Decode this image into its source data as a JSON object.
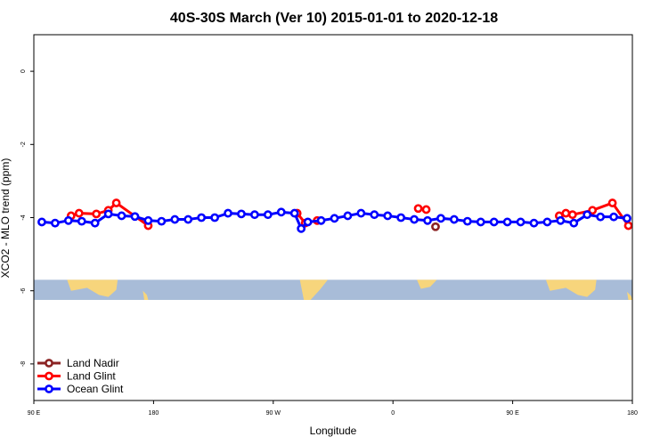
{
  "chart_data": {
    "type": "line",
    "title": "40S-30S March (Ver 10)   2015-01-01 to 2020-12-18",
    "xlabel": "Longitude",
    "ylabel": "XCO2 - MLO trend (ppm)",
    "x_ticks": [
      {
        "value": 90,
        "label": "90 E"
      },
      {
        "value": 180,
        "label": "180"
      },
      {
        "value": 270,
        "label": "90 W"
      },
      {
        "value": 360,
        "label": "0"
      },
      {
        "value": 450,
        "label": "90 E"
      },
      {
        "value": 540,
        "label": "180"
      }
    ],
    "y_ticks": [
      {
        "value": 0,
        "label": "0"
      },
      {
        "value": -2,
        "label": "-2"
      },
      {
        "value": -4,
        "label": "-4"
      },
      {
        "value": -6,
        "label": "-6"
      },
      {
        "value": -8,
        "label": "-8"
      }
    ],
    "xlim": [
      90,
      540
    ],
    "ylim": [
      -9.0,
      1.0
    ],
    "legend_position": "bottom-left",
    "map_strip_y_range": [
      -5.7,
      -6.25
    ],
    "map_colors": {
      "ocean": "#a8bcd8",
      "land": "#f7d57c"
    },
    "series": [
      {
        "name": "Land Nadir",
        "color": "#8b2323",
        "x": [
          392
        ],
        "y": [
          -4.25
        ]
      },
      {
        "name": "Land Glint",
        "color": "#ff0000",
        "x": [
          118,
          124,
          137,
          146,
          152,
          176,
          288,
          294,
          303,
          379,
          385,
          485,
          490,
          495,
          510,
          525,
          537
        ],
        "y": [
          -3.95,
          -3.88,
          -3.9,
          -3.8,
          -3.6,
          -4.22,
          -3.88,
          -4.15,
          -4.08,
          -3.75,
          -3.78,
          -3.95,
          -3.88,
          -3.92,
          -3.8,
          -3.6,
          -4.22
        ]
      },
      {
        "name": "Ocean Glint",
        "color": "#0000ff",
        "x": [
          96,
          106,
          116,
          126,
          136,
          146,
          156,
          166,
          176,
          186,
          196,
          206,
          216,
          226,
          236,
          246,
          256,
          266,
          276,
          286,
          291,
          296,
          306,
          316,
          326,
          336,
          346,
          356,
          366,
          376,
          386,
          396,
          406,
          416,
          426,
          436,
          446,
          456,
          466,
          476,
          486,
          496,
          506,
          516,
          526,
          536
        ],
        "y": [
          -4.12,
          -4.15,
          -4.08,
          -4.1,
          -4.15,
          -3.9,
          -3.95,
          -3.97,
          -4.08,
          -4.1,
          -4.05,
          -4.05,
          -4.0,
          -4.0,
          -3.88,
          -3.9,
          -3.92,
          -3.92,
          -3.85,
          -3.88,
          -4.3,
          -4.12,
          -4.08,
          -4.02,
          -3.95,
          -3.88,
          -3.92,
          -3.95,
          -4.0,
          -4.05,
          -4.08,
          -4.02,
          -4.05,
          -4.1,
          -4.12,
          -4.12,
          -4.12,
          -4.12,
          -4.15,
          -4.12,
          -4.08,
          -4.15,
          -3.92,
          -3.98,
          -3.98,
          -4.02
        ]
      }
    ]
  }
}
